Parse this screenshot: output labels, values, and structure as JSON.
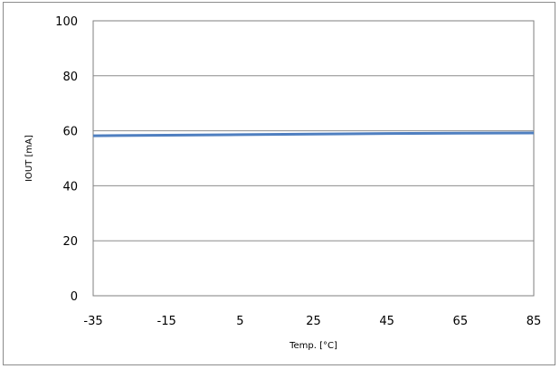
{
  "chart_data": {
    "type": "line",
    "title": "",
    "xlabel": "Temp. [°C]",
    "ylabel": "IOUT [mA]",
    "xlim": [
      -35,
      85
    ],
    "ylim": [
      0,
      100
    ],
    "xticks": [
      -35,
      -15,
      5,
      25,
      45,
      65,
      85
    ],
    "yticks": [
      0,
      20,
      40,
      60,
      80,
      100
    ],
    "grid": true,
    "series": [
      {
        "color": "#4f7fc0",
        "x": [
          -35,
          -15,
          5,
          25,
          45,
          65,
          85
        ],
        "y": [
          58.2,
          58.4,
          58.6,
          58.8,
          59.0,
          59.1,
          59.2
        ]
      }
    ]
  }
}
